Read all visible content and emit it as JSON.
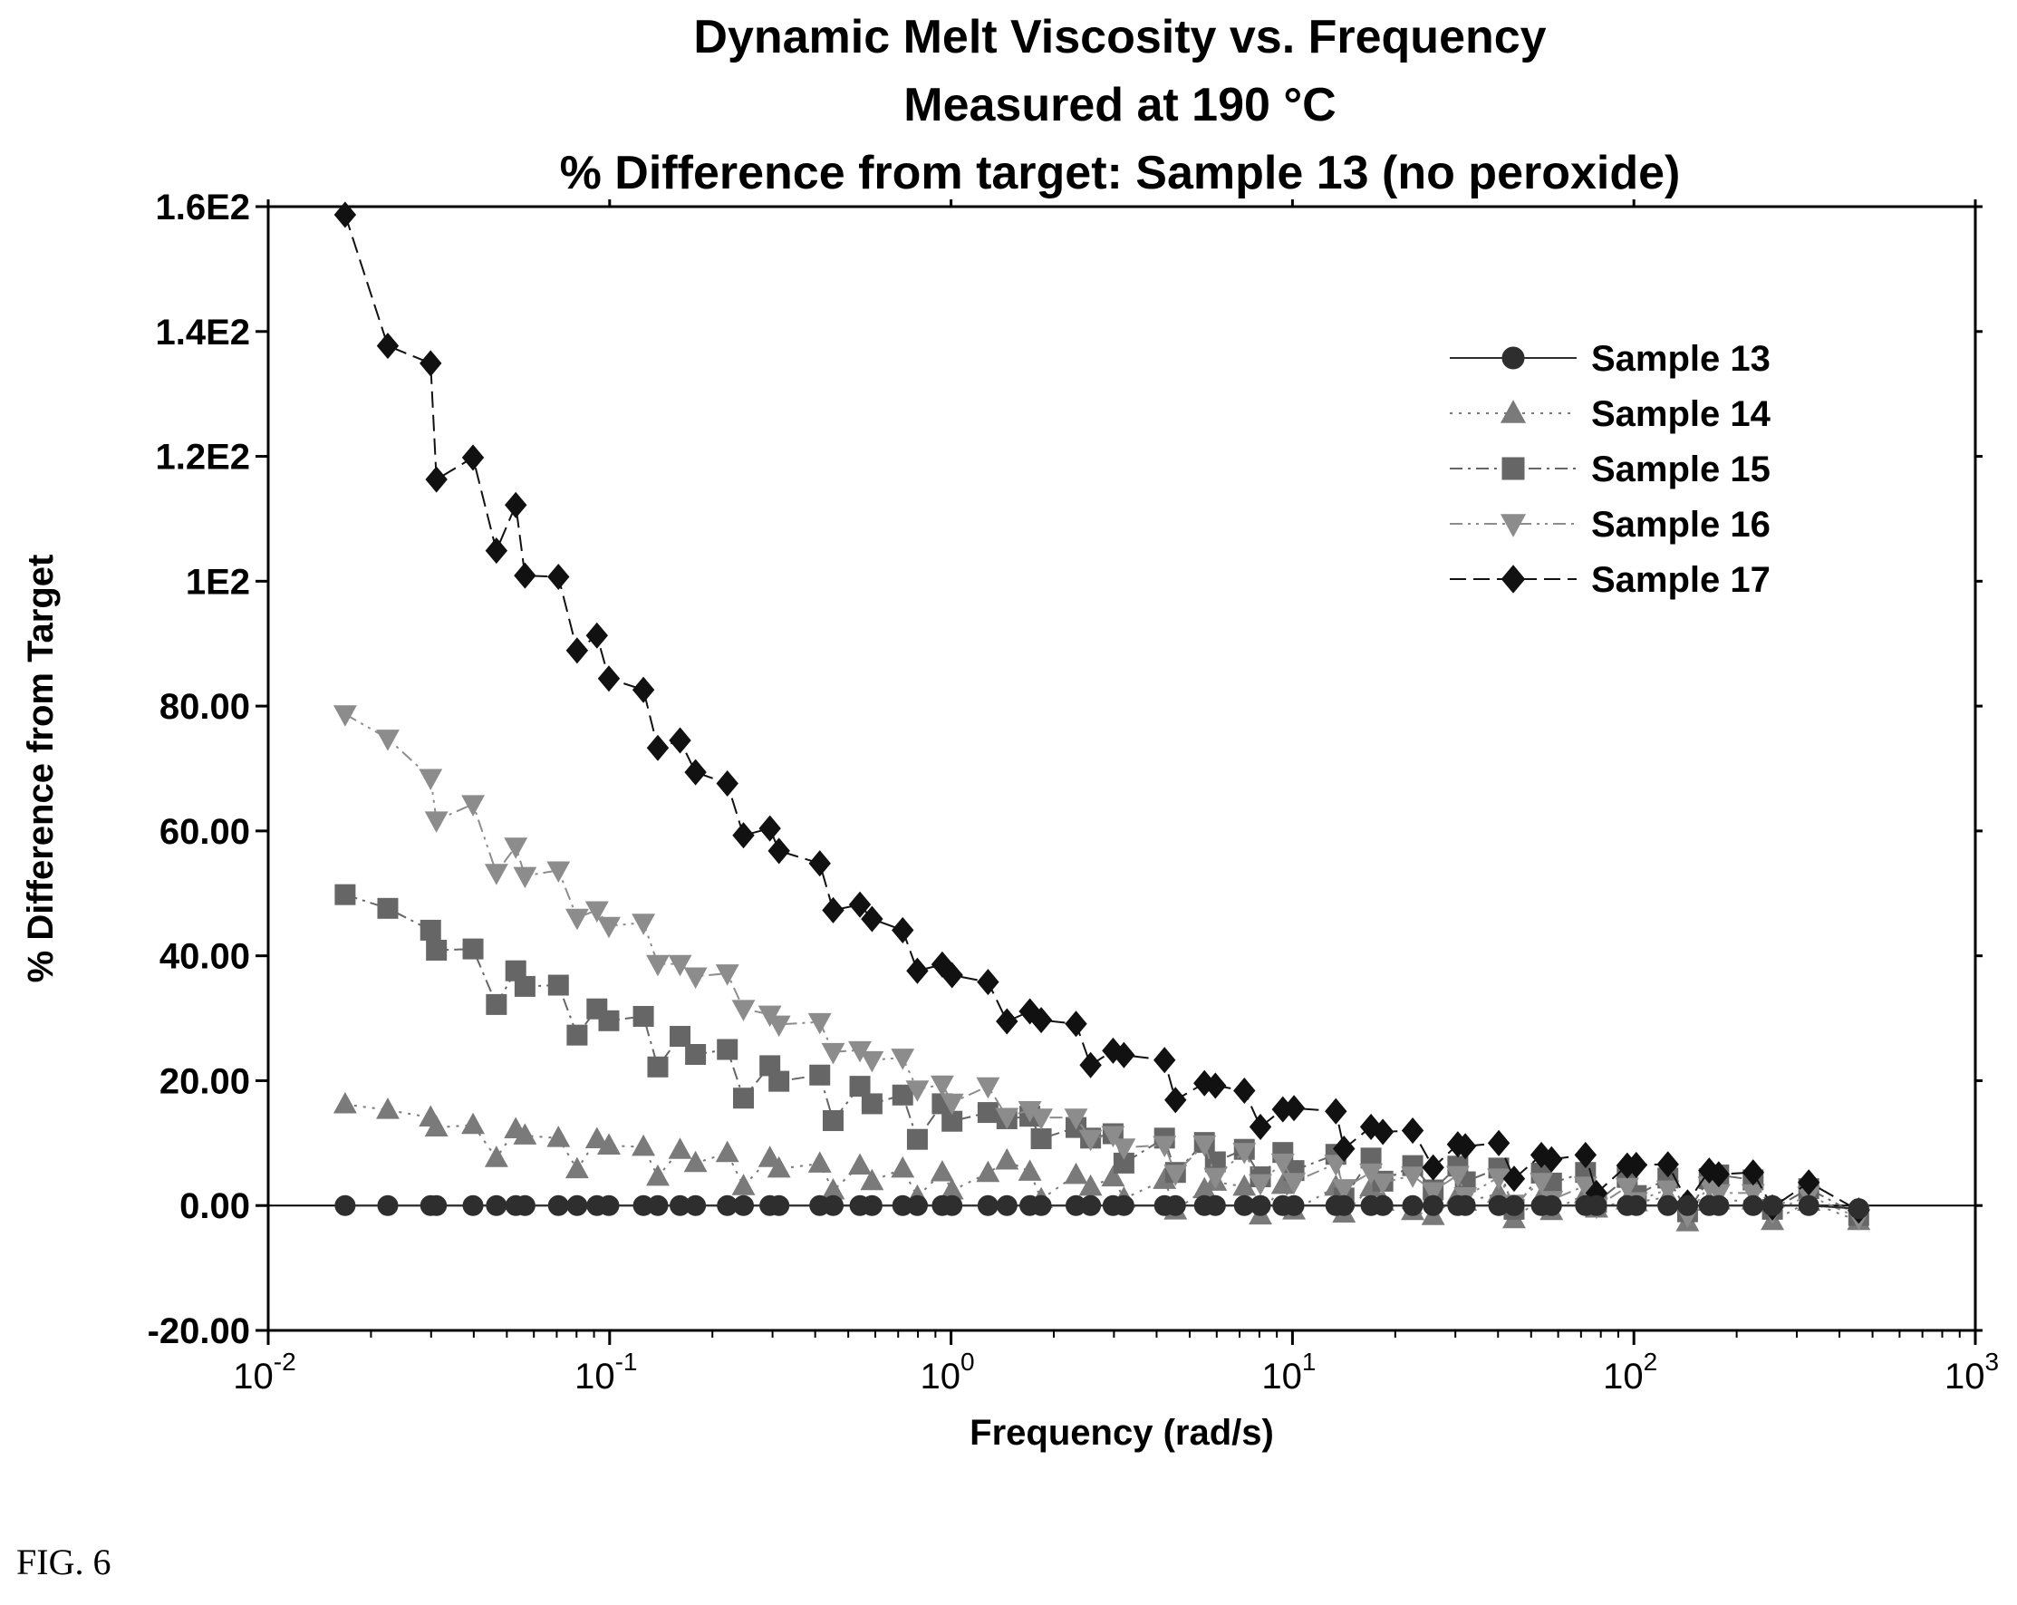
{
  "figure_label": "FIG. 6",
  "chart_data": {
    "type": "scatter",
    "title": "Dynamic Melt Viscosity vs. Frequency",
    "subtitle": "Measured at 190 °C",
    "subtitle2": "% Difference from target:  Sample 13 (no peroxide)",
    "xlabel": "Frequency (rad/s)",
    "ylabel": "% Difference from Target",
    "xscale": "log",
    "xlim": [
      0.01,
      1000
    ],
    "ylim": [
      -20,
      160
    ],
    "yticks": [
      {
        "value": -20,
        "label": "-20.00"
      },
      {
        "value": 0,
        "label": "0.00"
      },
      {
        "value": 20,
        "label": "20.00"
      },
      {
        "value": 40,
        "label": "40.00"
      },
      {
        "value": 60,
        "label": "60.00"
      },
      {
        "value": 80,
        "label": "80.00"
      },
      {
        "value": 100,
        "label": "1E2"
      },
      {
        "value": 120,
        "label": "1.2E2"
      },
      {
        "value": 140,
        "label": "1.4E2"
      },
      {
        "value": 160,
        "label": "1.6E2"
      }
    ],
    "xticks": [
      {
        "value": 0.01,
        "base": "10",
        "exp": "-2"
      },
      {
        "value": 0.1,
        "base": "10",
        "exp": "-1"
      },
      {
        "value": 1,
        "base": "10",
        "exp": "0"
      },
      {
        "value": 10,
        "base": "10",
        "exp": "1"
      },
      {
        "value": 100,
        "base": "10",
        "exp": "2"
      },
      {
        "value": 1000,
        "base": "10",
        "exp": "3"
      }
    ],
    "grid": false,
    "legend_position": "top-right",
    "x": [
      0.0168,
      0.0224,
      0.0299,
      0.0311,
      0.0398,
      0.0466,
      0.0531,
      0.0565,
      0.0708,
      0.0803,
      0.0918,
      0.0995,
      0.1256,
      0.1384,
      0.1608,
      0.1785,
      0.2212,
      0.2466,
      0.2947,
      0.3133,
      0.4126,
      0.4515,
      0.5409,
      0.5868,
      0.7217,
      0.7968,
      0.9425,
      1.0066,
      1.283,
      1.4577,
      1.7016,
      1.8366,
      2.3226,
      2.5628,
      2.9819,
      3.2085,
      4.2196,
      4.5426,
      5.5226,
      5.9457,
      7.2283,
      8.0564,
      9.3709,
      10.1024,
      13.4005,
      14.1549,
      16.9833,
      18.3946,
      22.4963,
      25.8283,
      30.5024,
      32.0804,
      40.2012,
      44.5718,
      53.5787,
      57.3707,
      72.1758,
      77.7016,
      95.5893,
      101.6219,
      125.7656,
      143.6104,
      166.1779,
      177.2049,
      223.4922,
      254.5286,
      325.2002,
      455.5042
    ],
    "series": [
      {
        "name": "Sample 13",
        "marker": "circle",
        "dash": "solid",
        "color": "#2e2e2e",
        "values": [
          0,
          0,
          0,
          0,
          0,
          0,
          0,
          0,
          0,
          0,
          0,
          0,
          0,
          0,
          0,
          0,
          0,
          0,
          0,
          0,
          0,
          0,
          0,
          0,
          0,
          0,
          0,
          0,
          0,
          0,
          0,
          0,
          0,
          0,
          0,
          0,
          0,
          0,
          0,
          0,
          0,
          0,
          0,
          0,
          0,
          0,
          0,
          0,
          0,
          0,
          0,
          0,
          0,
          0,
          0,
          0,
          0,
          0,
          0,
          0,
          0,
          0,
          0,
          0,
          0,
          0,
          0,
          -0.5
        ]
      },
      {
        "name": "Sample 14",
        "marker": "triangle-up",
        "dash": "dotted",
        "color": "#7a7a7a",
        "values": [
          16.2,
          15.3,
          14.1,
          12.5,
          12.9,
          7.6,
          12.2,
          11.2,
          10.8,
          5.8,
          10.6,
          9.6,
          9.4,
          4.6,
          8.9,
          6.8,
          8.4,
          3.1,
          7.6,
          5.9,
          6.7,
          2.4,
          6.4,
          3.9,
          5.9,
          1.4,
          5.3,
          2.4,
          5.2,
          7.2,
          5.4,
          1.0,
          4.9,
          3.0,
          4.5,
          1.1,
          4.1,
          -0.8,
          2.6,
          3.8,
          3.0,
          -1.6,
          3.3,
          -0.8,
          3.0,
          -1.3,
          2.9,
          0.6,
          -0.9,
          -1.7,
          1.7,
          0.6,
          1.9,
          -2.2,
          1.3,
          -0.9,
          1.8,
          -0.5,
          0.8,
          0.5,
          1.4,
          -2.7,
          0.6,
          0.8,
          0.8,
          -2.5,
          0.6,
          -2.5
        ]
      },
      {
        "name": "Sample 15",
        "marker": "square",
        "dash": "dash-dot",
        "color": "#666666",
        "values": [
          49.8,
          47.6,
          44.1,
          40.9,
          41.1,
          32.2,
          37.6,
          35.1,
          35.3,
          27.3,
          31.5,
          29.6,
          30.3,
          22.2,
          27.1,
          24.2,
          25.0,
          17.2,
          22.4,
          19.9,
          20.9,
          13.6,
          19.1,
          16.3,
          17.7,
          10.6,
          16.3,
          13.5,
          14.9,
          13.9,
          14.3,
          10.7,
          12.5,
          10.8,
          11.5,
          6.8,
          10.8,
          5.3,
          10.1,
          7.0,
          9.0,
          4.6,
          8.5,
          5.6,
          8.2,
          1.2,
          7.6,
          3.9,
          6.4,
          2.5,
          6.3,
          3.8,
          6.0,
          -0.6,
          5.2,
          3.6,
          5.3,
          0.5,
          4.5,
          1.6,
          4.4,
          -1.0,
          4.3,
          4.9,
          4.1,
          -0.6,
          2.7,
          -1.6
        ]
      },
      {
        "name": "Sample 16",
        "marker": "triangle-down",
        "dash": "dash-dot-dot",
        "color": "#8c8c8c",
        "values": [
          78.7,
          74.8,
          68.5,
          61.7,
          64.3,
          53.3,
          57.5,
          52.8,
          53.7,
          46.1,
          47.3,
          44.8,
          45.3,
          38.7,
          38.7,
          36.7,
          37.2,
          31.5,
          30.6,
          29.0,
          29.4,
          24.6,
          24.9,
          23.3,
          23.7,
          18.6,
          19.4,
          16.5,
          19.1,
          14.2,
          15.3,
          14.1,
          14.1,
          10.7,
          11.3,
          9.3,
          9.7,
          5.1,
          9.8,
          4.6,
          8.6,
          3.6,
          6.9,
          3.8,
          6.7,
          2.8,
          5.3,
          3.7,
          4.8,
          2.3,
          4.9,
          1.5,
          4.5,
          0.3,
          3.8,
          0.9,
          3.2,
          -0.2,
          3.0,
          0.7,
          2.6,
          -1.6,
          3.2,
          2.0,
          2.0,
          -1.0,
          1.6,
          -2.0
        ]
      },
      {
        "name": "Sample 17",
        "marker": "diamond",
        "dash": "long-dash",
        "color": "#111111",
        "values": [
          158.7,
          137.7,
          134.9,
          116.3,
          119.8,
          104.9,
          112.2,
          100.9,
          100.7,
          88.9,
          91.3,
          84.4,
          82.6,
          73.3,
          74.5,
          69.4,
          67.6,
          59.3,
          60.4,
          56.8,
          54.8,
          47.3,
          48.2,
          45.9,
          44.1,
          37.6,
          38.6,
          36.9,
          35.8,
          29.5,
          31.1,
          29.7,
          29.1,
          22.5,
          24.8,
          24.1,
          23.3,
          16.9,
          19.6,
          19.2,
          18.4,
          12.6,
          15.4,
          15.6,
          15.1,
          9.1,
          12.6,
          11.8,
          12.0,
          6.1,
          9.8,
          9.5,
          10.0,
          4.3,
          8.1,
          7.4,
          8.1,
          2.0,
          6.4,
          6.5,
          6.6,
          0.5,
          5.6,
          5.0,
          5.3,
          -0.3,
          3.7,
          -0.8
        ]
      }
    ]
  }
}
